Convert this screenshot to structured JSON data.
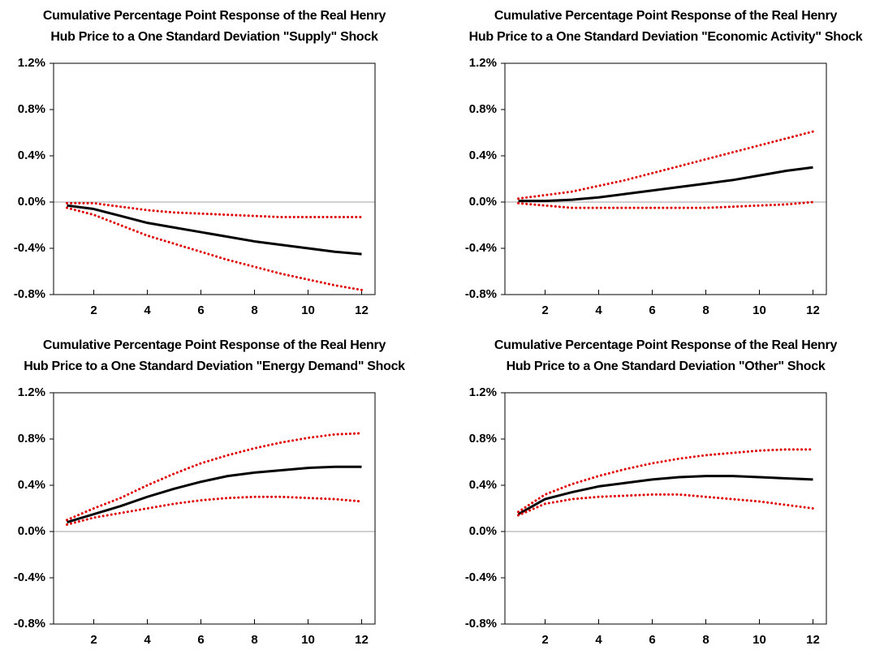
{
  "chart_data": [
    {
      "type": "line",
      "title": [
        "Cumulative Percentage Point Response of the Real Henry",
        "Hub Price to a One Standard Deviation \"Supply\" Shock"
      ],
      "x": [
        1,
        2,
        3,
        4,
        5,
        6,
        7,
        8,
        9,
        10,
        11,
        12
      ],
      "xlim": [
        0.5,
        12.5
      ],
      "xticks": [
        2,
        4,
        6,
        8,
        10,
        12
      ],
      "ylim": [
        -0.8,
        1.2
      ],
      "yticks": [
        {
          "value": -0.8,
          "label": "-0.8%"
        },
        {
          "value": -0.4,
          "label": "-0.4%"
        },
        {
          "value": 0,
          "label": "0.0%"
        },
        {
          "value": 0.4,
          "label": "0.4%"
        },
        {
          "value": 0.8,
          "label": "0.8%"
        },
        {
          "value": 1.2,
          "label": "1.2%"
        }
      ],
      "series": [
        {
          "color": "#000000",
          "style": "solid",
          "values": [
            -0.03,
            -0.06,
            -0.12,
            -0.18,
            -0.22,
            -0.26,
            -0.3,
            -0.34,
            -0.37,
            -0.4,
            -0.43,
            -0.45
          ]
        },
        {
          "color": "#e00000",
          "style": "dotted",
          "values": [
            -0.01,
            -0.01,
            -0.04,
            -0.07,
            -0.09,
            -0.1,
            -0.11,
            -0.12,
            -0.13,
            -0.13,
            -0.13,
            -0.13
          ]
        },
        {
          "color": "#e00000",
          "style": "dotted",
          "values": [
            -0.05,
            -0.11,
            -0.2,
            -0.29,
            -0.36,
            -0.43,
            -0.5,
            -0.56,
            -0.62,
            -0.67,
            -0.72,
            -0.76
          ]
        }
      ]
    },
    {
      "type": "line",
      "title": [
        "Cumulative Percentage Point Response of the Real Henry",
        "Hub Price to a One Standard Deviation \"Economic Activity\" Shock"
      ],
      "x": [
        1,
        2,
        3,
        4,
        5,
        6,
        7,
        8,
        9,
        10,
        11,
        12
      ],
      "xlim": [
        0.5,
        12.5
      ],
      "xticks": [
        2,
        4,
        6,
        8,
        10,
        12
      ],
      "ylim": [
        -0.8,
        1.2
      ],
      "yticks": [
        {
          "value": -0.8,
          "label": "-0.8%"
        },
        {
          "value": -0.4,
          "label": "-0.4%"
        },
        {
          "value": 0,
          "label": "0.0%"
        },
        {
          "value": 0.4,
          "label": "0.4%"
        },
        {
          "value": 0.8,
          "label": "0.8%"
        },
        {
          "value": 1.2,
          "label": "1.2%"
        }
      ],
      "series": [
        {
          "color": "#000000",
          "style": "solid",
          "values": [
            0.01,
            0.01,
            0.02,
            0.04,
            0.07,
            0.1,
            0.13,
            0.16,
            0.19,
            0.23,
            0.27,
            0.3
          ]
        },
        {
          "color": "#e00000",
          "style": "dotted",
          "values": [
            0.03,
            0.06,
            0.09,
            0.14,
            0.19,
            0.25,
            0.31,
            0.37,
            0.43,
            0.49,
            0.55,
            0.61
          ]
        },
        {
          "color": "#e00000",
          "style": "dotted",
          "values": [
            -0.01,
            -0.03,
            -0.05,
            -0.05,
            -0.05,
            -0.05,
            -0.05,
            -0.05,
            -0.04,
            -0.03,
            -0.02,
            0.0
          ]
        }
      ]
    },
    {
      "type": "line",
      "title": [
        "Cumulative Percentage Point Response of the Real Henry",
        "Hub Price to a One Standard Deviation \"Energy Demand\" Shock"
      ],
      "x": [
        1,
        2,
        3,
        4,
        5,
        6,
        7,
        8,
        9,
        10,
        11,
        12
      ],
      "xlim": [
        0.5,
        12.5
      ],
      "xticks": [
        2,
        4,
        6,
        8,
        10,
        12
      ],
      "ylim": [
        -0.8,
        1.2
      ],
      "yticks": [
        {
          "value": -0.8,
          "label": "-0.8%"
        },
        {
          "value": -0.4,
          "label": "-0.4%"
        },
        {
          "value": 0,
          "label": "0.0%"
        },
        {
          "value": 0.4,
          "label": "0.4%"
        },
        {
          "value": 0.8,
          "label": "0.8%"
        },
        {
          "value": 1.2,
          "label": "1.2%"
        }
      ],
      "series": [
        {
          "color": "#000000",
          "style": "solid",
          "values": [
            0.08,
            0.15,
            0.22,
            0.3,
            0.37,
            0.43,
            0.48,
            0.51,
            0.53,
            0.55,
            0.56,
            0.56
          ]
        },
        {
          "color": "#e00000",
          "style": "dotted",
          "values": [
            0.1,
            0.2,
            0.29,
            0.4,
            0.5,
            0.59,
            0.66,
            0.72,
            0.77,
            0.81,
            0.84,
            0.85
          ]
        },
        {
          "color": "#e00000",
          "style": "dotted",
          "values": [
            0.06,
            0.12,
            0.16,
            0.2,
            0.24,
            0.27,
            0.29,
            0.3,
            0.3,
            0.29,
            0.28,
            0.26
          ]
        }
      ]
    },
    {
      "type": "line",
      "title": [
        "Cumulative Percentage Point Response of the Real Henry",
        "Hub Price to a One Standard Deviation \"Other\" Shock"
      ],
      "x": [
        1,
        2,
        3,
        4,
        5,
        6,
        7,
        8,
        9,
        10,
        11,
        12
      ],
      "xlim": [
        0.5,
        12.5
      ],
      "xticks": [
        2,
        4,
        6,
        8,
        10,
        12
      ],
      "ylim": [
        -0.8,
        1.2
      ],
      "yticks": [
        {
          "value": -0.8,
          "label": "-0.8%"
        },
        {
          "value": -0.4,
          "label": "-0.4%"
        },
        {
          "value": 0,
          "label": "0.0%"
        },
        {
          "value": 0.4,
          "label": "0.4%"
        },
        {
          "value": 0.8,
          "label": "0.8%"
        },
        {
          "value": 1.2,
          "label": "1.2%"
        }
      ],
      "series": [
        {
          "color": "#000000",
          "style": "solid",
          "values": [
            0.15,
            0.28,
            0.34,
            0.39,
            0.42,
            0.45,
            0.47,
            0.48,
            0.48,
            0.47,
            0.46,
            0.45
          ]
        },
        {
          "color": "#e00000",
          "style": "dotted",
          "values": [
            0.17,
            0.32,
            0.41,
            0.48,
            0.54,
            0.59,
            0.63,
            0.66,
            0.68,
            0.7,
            0.71,
            0.71
          ]
        },
        {
          "color": "#e00000",
          "style": "dotted",
          "values": [
            0.14,
            0.24,
            0.28,
            0.3,
            0.31,
            0.32,
            0.32,
            0.3,
            0.28,
            0.26,
            0.23,
            0.2
          ]
        }
      ]
    }
  ]
}
